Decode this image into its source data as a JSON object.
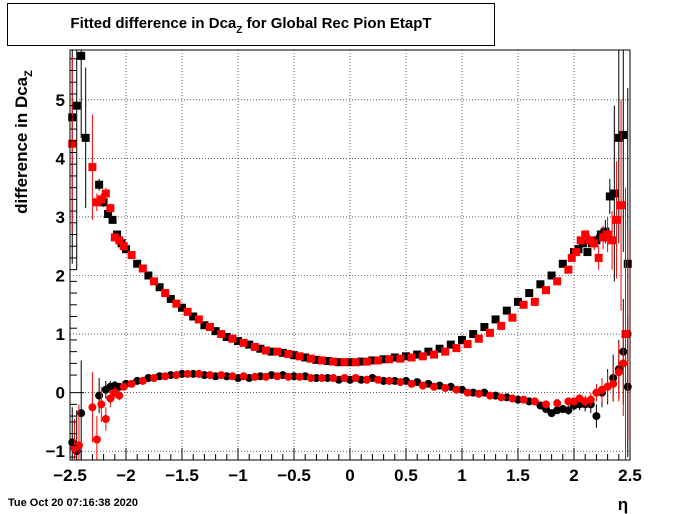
{
  "chart_data": {
    "type": "scatter",
    "title_main": "Fitted difference in Dca",
    "title_sub": "Z",
    "title_rest": "for Global Rec Pion EtapT",
    "xlabel": "η",
    "ylabel_main": "difference in Dca",
    "ylabel_sub": "Z",
    "xlim": [
      -2.5,
      2.5
    ],
    "ylim": [
      -1.15,
      5.85
    ],
    "grid": true,
    "x_ticks": [
      -2.5,
      -2,
      -1.5,
      -1,
      -0.5,
      0,
      0.5,
      1,
      1.5,
      2,
      2.5
    ],
    "x_tick_labels": [
      "−2.5",
      "−2",
      "−1.5",
      "−1",
      "−0.5",
      "0",
      "0.5",
      "1",
      "1.5",
      "2",
      "2.5"
    ],
    "y_ticks": [
      -1,
      0,
      1,
      2,
      3,
      4,
      5
    ],
    "y_tick_labels": [
      "−1",
      "0",
      "1",
      "2",
      "3",
      "4",
      "5"
    ],
    "series": [
      {
        "marker": "square",
        "color": "#000000",
        "x": [
          -2.48,
          -2.44,
          -2.4,
          -2.36,
          -2.24,
          -2.2,
          -2.16,
          -2.12,
          -2.08,
          -2.04,
          -2.0,
          -1.9,
          -1.8,
          -1.7,
          -1.6,
          -1.5,
          -1.4,
          -1.3,
          -1.2,
          -1.1,
          -1.0,
          -0.9,
          -0.8,
          -0.7,
          -0.6,
          -0.5,
          -0.4,
          -0.3,
          -0.2,
          -0.1,
          0.0,
          0.1,
          0.2,
          0.3,
          0.4,
          0.5,
          0.6,
          0.7,
          0.8,
          0.9,
          1.0,
          1.1,
          1.2,
          1.3,
          1.4,
          1.5,
          1.6,
          1.7,
          1.8,
          1.9,
          2.0,
          2.04,
          2.08,
          2.12,
          2.16,
          2.2,
          2.24,
          2.28,
          2.32,
          2.36,
          2.4,
          2.44,
          2.48
        ],
        "y": [
          4.7,
          4.9,
          5.75,
          4.35,
          3.55,
          3.25,
          3.05,
          2.95,
          2.7,
          2.55,
          2.45,
          2.2,
          2.0,
          1.8,
          1.6,
          1.45,
          1.3,
          1.15,
          1.05,
          0.95,
          0.88,
          0.82,
          0.75,
          0.7,
          0.68,
          0.64,
          0.6,
          0.56,
          0.54,
          0.52,
          0.52,
          0.53,
          0.55,
          0.57,
          0.6,
          0.62,
          0.65,
          0.7,
          0.75,
          0.82,
          0.9,
          1.0,
          1.12,
          1.25,
          1.4,
          1.55,
          1.7,
          1.85,
          2.0,
          2.2,
          2.4,
          2.45,
          2.55,
          2.4,
          2.55,
          2.6,
          2.7,
          2.75,
          3.35,
          3.4,
          4.35,
          4.4,
          2.2
        ],
        "errors": [
          2.5,
          2.8,
          1.4,
          1.2,
          0.1,
          0.08,
          0.06,
          0.05,
          0.05,
          0.05,
          0.03,
          0.02,
          0.02,
          0.02,
          0.02,
          0.02,
          0.02,
          0.02,
          0.02,
          0.02,
          0.02,
          0.02,
          0.02,
          0.02,
          0.02,
          0.02,
          0.02,
          0.02,
          0.02,
          0.02,
          0.02,
          0.02,
          0.02,
          0.02,
          0.02,
          0.02,
          0.02,
          0.02,
          0.02,
          0.02,
          0.02,
          0.02,
          0.02,
          0.02,
          0.02,
          0.02,
          0.02,
          0.02,
          0.02,
          0.03,
          0.04,
          0.05,
          0.05,
          0.06,
          0.07,
          0.1,
          0.1,
          0.2,
          0.3,
          1.5,
          1.8,
          2.0,
          3.0
        ]
      },
      {
        "marker": "square",
        "color": "#ff0000",
        "x": [
          -2.48,
          -2.3,
          -2.26,
          -2.22,
          -2.18,
          -2.14,
          -2.1,
          -2.06,
          -2.02,
          -1.95,
          -1.85,
          -1.75,
          -1.65,
          -1.55,
          -1.45,
          -1.35,
          -1.25,
          -1.15,
          -1.05,
          -0.95,
          -0.85,
          -0.75,
          -0.65,
          -0.55,
          -0.45,
          -0.35,
          -0.25,
          -0.15,
          -0.05,
          0.05,
          0.15,
          0.25,
          0.35,
          0.45,
          0.55,
          0.65,
          0.75,
          0.85,
          0.95,
          1.05,
          1.15,
          1.25,
          1.35,
          1.45,
          1.55,
          1.65,
          1.75,
          1.85,
          1.95,
          1.98,
          2.02,
          2.06,
          2.1,
          2.14,
          2.18,
          2.22,
          2.26,
          2.3,
          2.34,
          2.38,
          2.42,
          2.46
        ],
        "y": [
          4.25,
          3.85,
          3.25,
          3.3,
          3.4,
          3.15,
          2.65,
          2.6,
          2.5,
          2.35,
          2.12,
          1.9,
          1.7,
          1.52,
          1.38,
          1.25,
          1.12,
          1.0,
          0.92,
          0.85,
          0.78,
          0.72,
          0.7,
          0.66,
          0.62,
          0.58,
          0.55,
          0.53,
          0.52,
          0.52,
          0.53,
          0.55,
          0.57,
          0.58,
          0.6,
          0.62,
          0.65,
          0.7,
          0.76,
          0.83,
          0.92,
          1.02,
          1.14,
          1.28,
          1.5,
          1.55,
          1.75,
          1.9,
          2.1,
          2.3,
          2.4,
          2.6,
          2.7,
          2.6,
          2.55,
          2.3,
          2.65,
          2.7,
          2.6,
          2.95,
          3.2,
          1.0
        ],
        "errors": [
          1.5,
          0.9,
          0.15,
          0.1,
          0.1,
          0.08,
          0.05,
          0.04,
          0.04,
          0.03,
          0.02,
          0.02,
          0.02,
          0.02,
          0.02,
          0.02,
          0.02,
          0.02,
          0.02,
          0.02,
          0.02,
          0.02,
          0.02,
          0.02,
          0.02,
          0.02,
          0.02,
          0.02,
          0.02,
          0.02,
          0.02,
          0.02,
          0.02,
          0.02,
          0.02,
          0.02,
          0.02,
          0.02,
          0.02,
          0.02,
          0.02,
          0.02,
          0.02,
          0.02,
          0.02,
          0.02,
          0.02,
          0.02,
          0.03,
          0.04,
          0.05,
          0.06,
          0.07,
          0.1,
          0.12,
          0.2,
          0.2,
          0.3,
          0.5,
          1.0,
          1.8,
          2.5
        ]
      },
      {
        "marker": "circle",
        "color": "#000000",
        "x": [
          -2.48,
          -2.44,
          -2.4,
          -2.24,
          -2.18,
          -2.14,
          -2.1,
          -2.06,
          -2.0,
          -1.9,
          -1.8,
          -1.7,
          -1.6,
          -1.5,
          -1.4,
          -1.3,
          -1.2,
          -1.1,
          -1.0,
          -0.9,
          -0.8,
          -0.7,
          -0.6,
          -0.5,
          -0.4,
          -0.3,
          -0.2,
          -0.1,
          0.0,
          0.1,
          0.2,
          0.3,
          0.4,
          0.5,
          0.6,
          0.7,
          0.8,
          0.9,
          1.0,
          1.1,
          1.2,
          1.3,
          1.4,
          1.5,
          1.6,
          1.7,
          1.75,
          1.8,
          1.85,
          1.9,
          1.95,
          2.0,
          2.05,
          2.1,
          2.15,
          2.2,
          2.25,
          2.3,
          2.35,
          2.4,
          2.44,
          2.48
        ],
        "y": [
          -0.85,
          -1.0,
          -0.35,
          -0.05,
          0.05,
          0.1,
          0.12,
          0.1,
          0.15,
          0.2,
          0.25,
          0.28,
          0.3,
          0.32,
          0.32,
          0.3,
          0.28,
          0.28,
          0.25,
          0.25,
          0.28,
          0.3,
          0.3,
          0.28,
          0.28,
          0.25,
          0.25,
          0.22,
          0.22,
          0.22,
          0.25,
          0.2,
          0.2,
          0.2,
          0.18,
          0.15,
          0.12,
          0.1,
          0.05,
          0.0,
          0.0,
          -0.05,
          -0.08,
          -0.12,
          -0.15,
          -0.22,
          -0.28,
          -0.35,
          -0.3,
          -0.28,
          -0.3,
          -0.22,
          -0.2,
          -0.2,
          -0.2,
          -0.4,
          0.0,
          0.1,
          0.25,
          0.4,
          0.7,
          0.1
        ],
        "errors": [
          0.6,
          0.7,
          0.9,
          0.3,
          0.15,
          0.1,
          0.08,
          0.06,
          0.05,
          0.03,
          0.02,
          0.02,
          0.02,
          0.02,
          0.02,
          0.02,
          0.02,
          0.02,
          0.02,
          0.02,
          0.02,
          0.02,
          0.02,
          0.02,
          0.02,
          0.02,
          0.02,
          0.02,
          0.02,
          0.02,
          0.02,
          0.02,
          0.02,
          0.02,
          0.02,
          0.02,
          0.02,
          0.02,
          0.02,
          0.02,
          0.02,
          0.02,
          0.02,
          0.02,
          0.03,
          0.04,
          0.05,
          0.06,
          0.06,
          0.07,
          0.08,
          0.08,
          0.1,
          0.12,
          0.15,
          0.2,
          0.25,
          0.3,
          0.4,
          0.5,
          0.9,
          1.2
        ]
      },
      {
        "marker": "circle",
        "color": "#ff0000",
        "x": [
          -2.46,
          -2.42,
          -2.3,
          -2.26,
          -2.22,
          -2.18,
          -2.14,
          -2.1,
          -2.06,
          -2.02,
          -1.95,
          -1.85,
          -1.75,
          -1.65,
          -1.55,
          -1.45,
          -1.35,
          -1.25,
          -1.15,
          -1.05,
          -0.95,
          -0.85,
          -0.75,
          -0.65,
          -0.55,
          -0.45,
          -0.35,
          -0.25,
          -0.15,
          -0.05,
          0.05,
          0.15,
          0.25,
          0.35,
          0.45,
          0.55,
          0.65,
          0.75,
          0.85,
          0.95,
          1.05,
          1.15,
          1.25,
          1.35,
          1.45,
          1.55,
          1.65,
          1.75,
          1.85,
          1.95,
          2.0,
          2.05,
          2.1,
          2.15,
          2.2,
          2.25,
          2.3,
          2.35,
          2.4,
          2.44,
          2.48
        ],
        "y": [
          -0.95,
          -0.9,
          -0.25,
          -0.8,
          -0.2,
          -0.45,
          -0.1,
          0.0,
          -0.05,
          0.1,
          0.15,
          0.2,
          0.25,
          0.28,
          0.3,
          0.32,
          0.32,
          0.3,
          0.3,
          0.28,
          0.28,
          0.27,
          0.27,
          0.28,
          0.27,
          0.27,
          0.25,
          0.25,
          0.25,
          0.25,
          0.25,
          0.22,
          0.22,
          0.2,
          0.18,
          0.15,
          0.12,
          0.1,
          0.08,
          0.05,
          0.0,
          -0.02,
          -0.05,
          -0.08,
          -0.1,
          -0.12,
          -0.15,
          -0.2,
          -0.18,
          -0.15,
          -0.15,
          -0.1,
          -0.15,
          -0.12,
          0.0,
          0.05,
          0.1,
          0.15,
          0.35,
          0.5,
          1.0
        ],
        "errors": [
          0.5,
          0.7,
          0.6,
          0.4,
          0.3,
          0.2,
          0.15,
          0.1,
          0.08,
          0.06,
          0.04,
          0.03,
          0.02,
          0.02,
          0.02,
          0.02,
          0.02,
          0.02,
          0.02,
          0.02,
          0.02,
          0.02,
          0.02,
          0.02,
          0.02,
          0.02,
          0.02,
          0.02,
          0.02,
          0.02,
          0.02,
          0.02,
          0.02,
          0.02,
          0.02,
          0.02,
          0.02,
          0.02,
          0.02,
          0.02,
          0.02,
          0.02,
          0.02,
          0.02,
          0.02,
          0.02,
          0.03,
          0.04,
          0.05,
          0.06,
          0.07,
          0.08,
          0.1,
          0.12,
          0.15,
          0.2,
          0.25,
          0.3,
          0.5,
          0.9,
          1.8
        ]
      }
    ]
  },
  "footer": {
    "date": "Tue Oct 20 07:16:38 2020"
  }
}
